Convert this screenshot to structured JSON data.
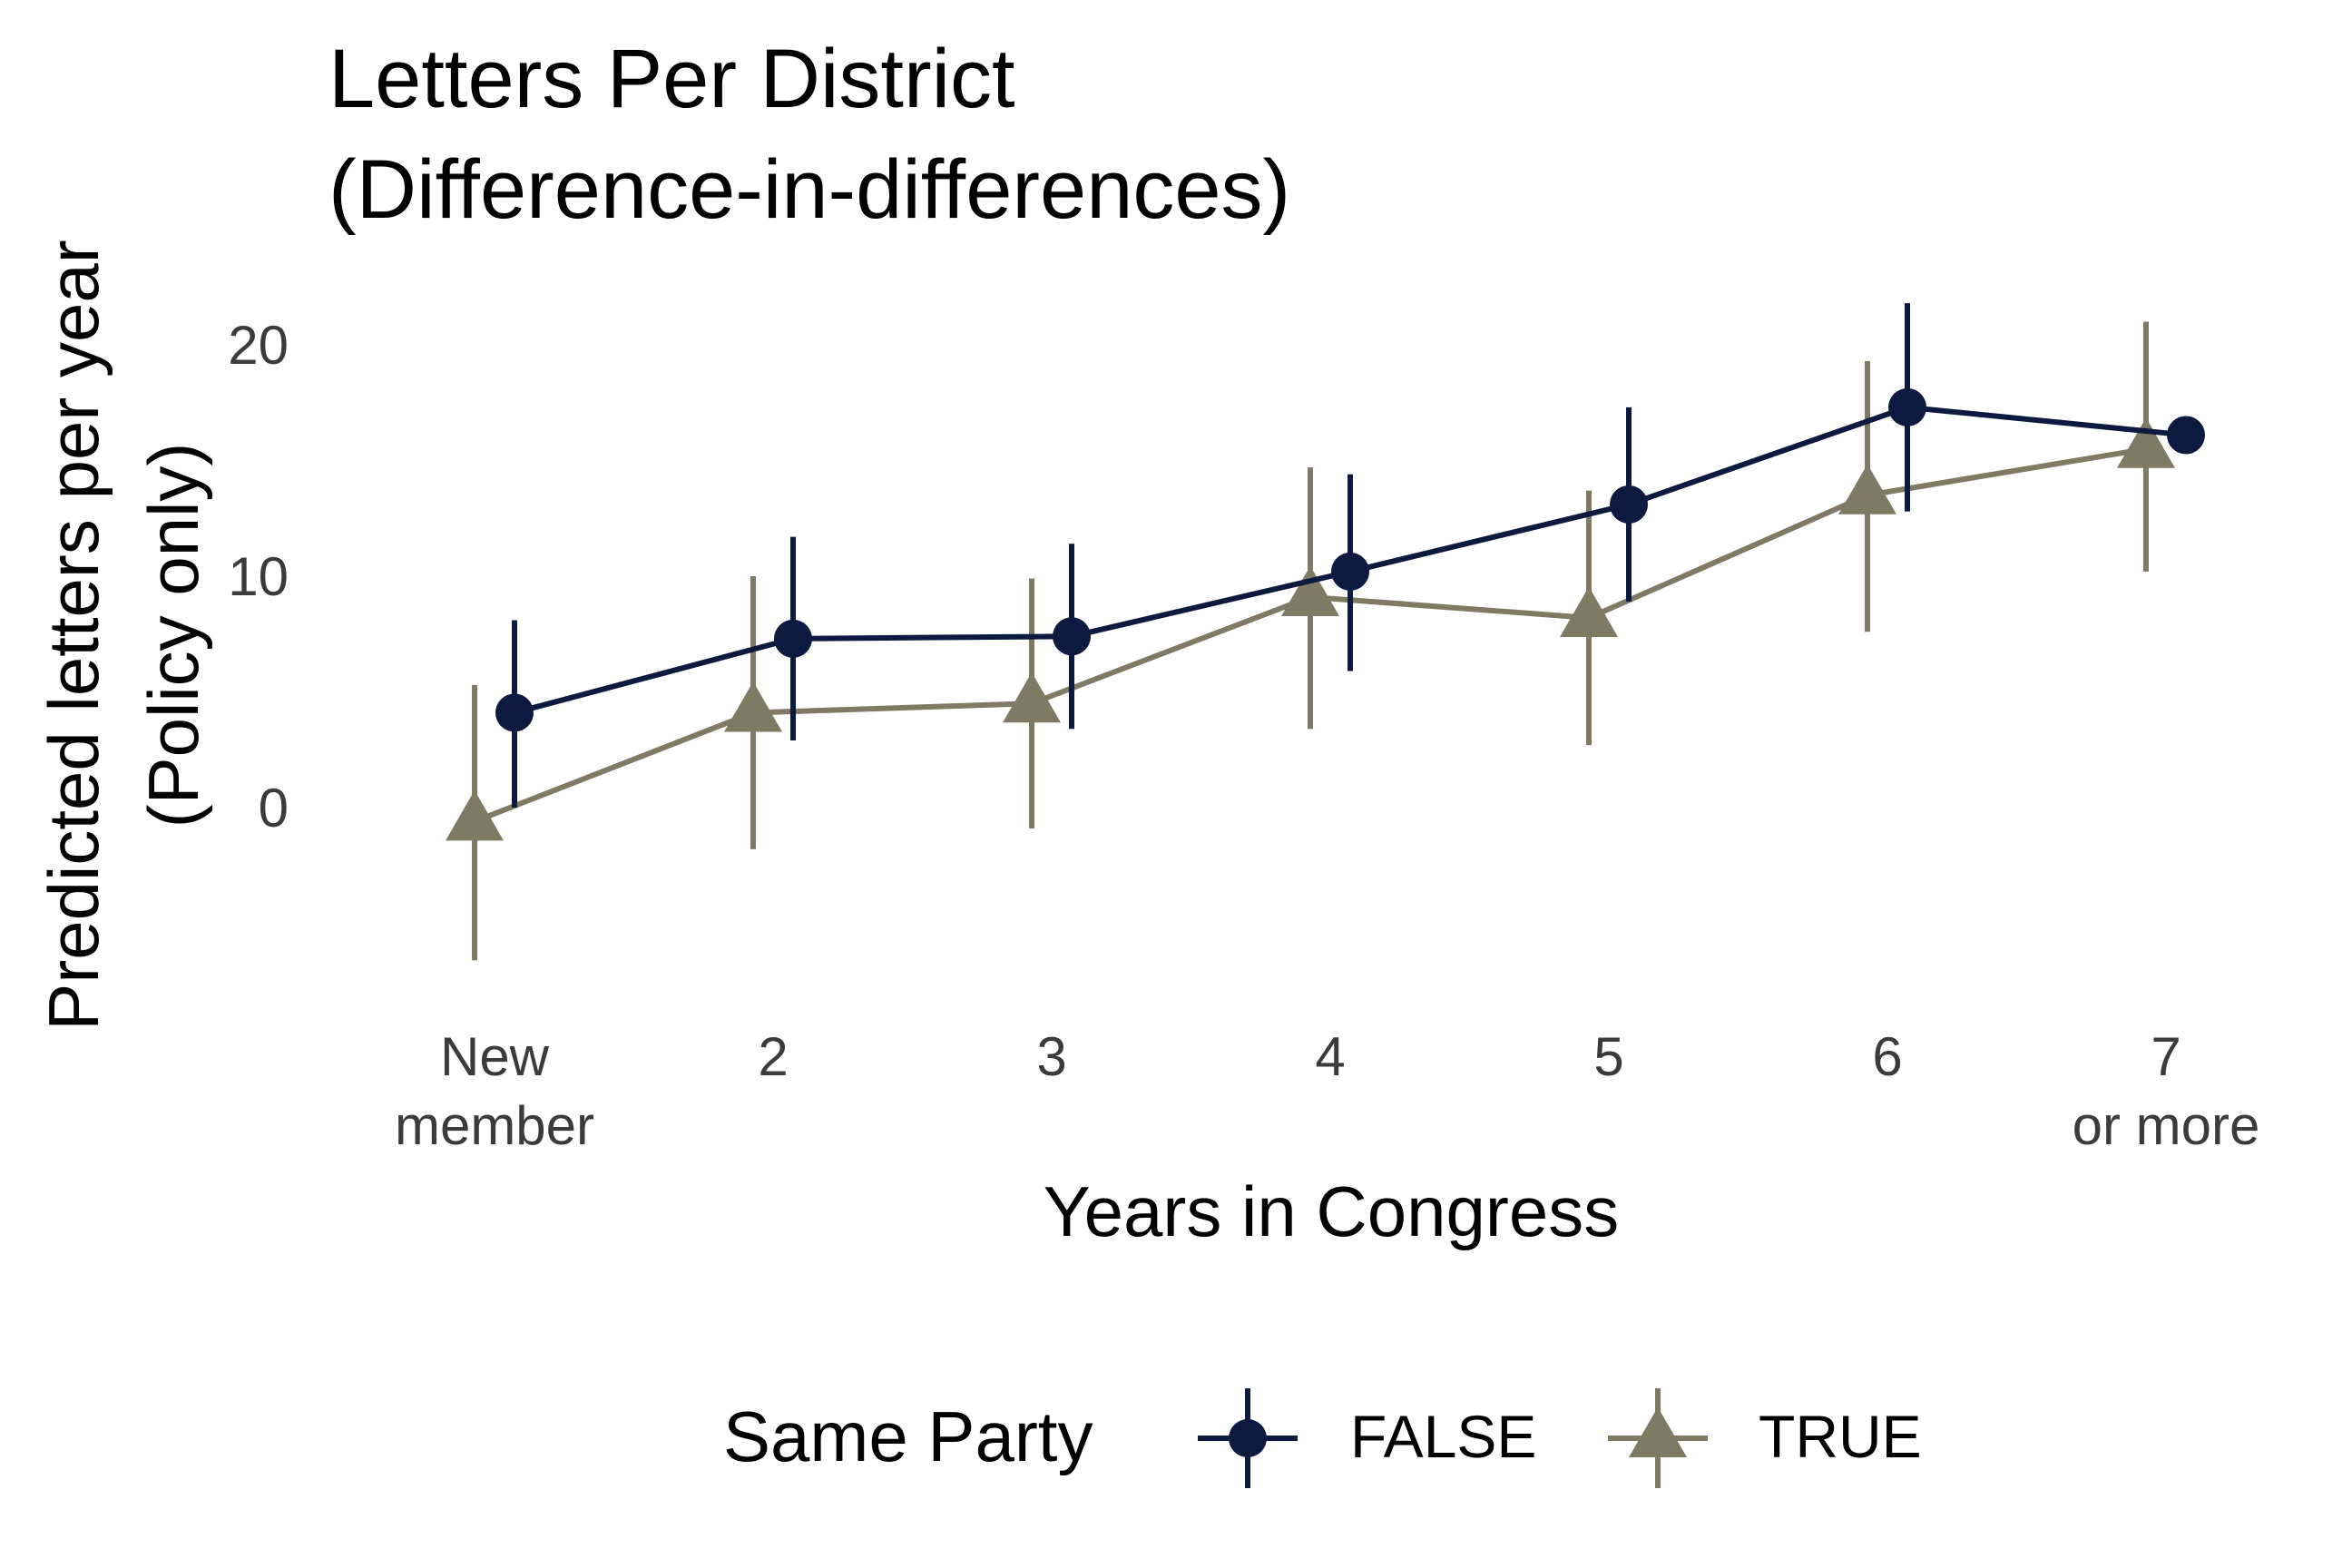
{
  "colors": {
    "false_series": "#0b1a3e",
    "true_series": "#7e7a63"
  },
  "chart_data": {
    "type": "line",
    "title_lines": [
      "Letters Per District",
      "(Difference-in-differences)"
    ],
    "xlabel": "Years in Congress",
    "ylabel_lines": [
      "Predicted letters per year",
      "(Policy only)"
    ],
    "ylim": [
      -7,
      22
    ],
    "yticks": [
      0,
      10,
      20
    ],
    "categories": [
      [
        "New",
        "member"
      ],
      [
        "2"
      ],
      [
        "3"
      ],
      [
        "4"
      ],
      [
        "5"
      ],
      [
        "6"
      ],
      [
        "7",
        "or more"
      ]
    ],
    "grid": false,
    "legend": {
      "title": "Same Party",
      "position": "bottom",
      "entries": [
        "FALSE",
        "TRUE"
      ]
    },
    "series": [
      {
        "name": "FALSE",
        "marker": "circle",
        "color": "#0b1a3e",
        "values": [
          4.1,
          7.3,
          7.4,
          10.2,
          13.1,
          17.3,
          16.1
        ],
        "lower": [
          0.0,
          2.9,
          3.4,
          5.9,
          8.9,
          12.8,
          16.1
        ],
        "upper": [
          8.1,
          11.7,
          11.4,
          14.4,
          17.3,
          21.8,
          16.1
        ]
      },
      {
        "name": "TRUE",
        "marker": "triangle",
        "color": "#7e7a63",
        "values": [
          -0.6,
          4.1,
          4.5,
          9.1,
          8.2,
          13.5,
          15.5
        ],
        "lower": [
          -6.6,
          -1.8,
          -0.9,
          3.4,
          2.7,
          7.6,
          10.2
        ],
        "upper": [
          5.3,
          10.0,
          9.9,
          14.7,
          13.7,
          19.3,
          21.0
        ]
      }
    ]
  }
}
